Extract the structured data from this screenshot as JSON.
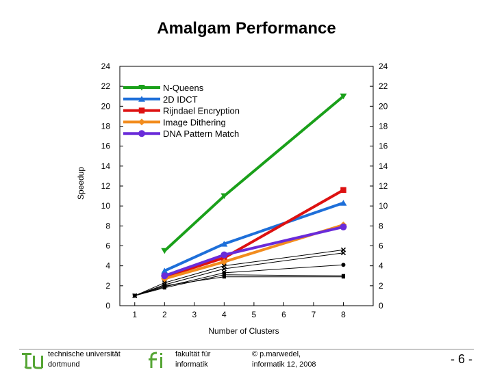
{
  "slide": {
    "title": "Amalgam Performance",
    "footer_left_line1": "technische universität",
    "footer_left_line2": "dortmund",
    "footer_mid_line1": "fakultät für",
    "footer_mid_line2": "informatik",
    "footer_right_line1": "© p.marwedel,",
    "footer_right_line2": "informatik 12, 2008",
    "page_number": "- 6 -"
  },
  "chart_data": {
    "type": "line",
    "title": "",
    "xlabel": "Number of Clusters",
    "ylabel": "Speedup",
    "x": [
      1,
      2,
      3,
      4,
      5,
      6,
      7,
      8
    ],
    "xlim": [
      0.5,
      9
    ],
    "ylim": [
      0,
      24
    ],
    "yticks": [
      0,
      2,
      4,
      6,
      8,
      10,
      12,
      14,
      16,
      18,
      20,
      22,
      24
    ],
    "legend_position": "top-left",
    "series": [
      {
        "name": "N-Queens",
        "color": "#1aa01a",
        "marker": "triangle-down",
        "x": [
          2,
          4,
          8
        ],
        "values": [
          5.5,
          11,
          21
        ]
      },
      {
        "name": "2D IDCT",
        "color": "#1e6fd9",
        "marker": "triangle-up",
        "x": [
          2,
          4,
          8
        ],
        "values": [
          3.5,
          6.2,
          10.3
        ]
      },
      {
        "name": "Rijndael Encryption",
        "color": "#dd1111",
        "marker": "square",
        "x": [
          2,
          4,
          8
        ],
        "values": [
          2.9,
          4.8,
          11.6
        ]
      },
      {
        "name": "Image Dithering",
        "color": "#f28c1e",
        "marker": "diamond",
        "x": [
          2,
          4,
          8
        ],
        "values": [
          2.7,
          4.4,
          8.1
        ]
      },
      {
        "name": "DNA Pattern Match",
        "color": "#6a2bd9",
        "marker": "circle",
        "x": [
          2,
          4,
          8
        ],
        "values": [
          3.0,
          5.1,
          7.9
        ]
      }
    ],
    "minor_series": [
      {
        "marker": "square",
        "x": [
          1,
          2,
          4,
          8
        ],
        "values": [
          1,
          2.0,
          2.9,
          2.9
        ]
      },
      {
        "marker": "circle",
        "x": [
          1,
          2,
          4,
          8
        ],
        "values": [
          1,
          1.9,
          3.3,
          4.1
        ]
      },
      {
        "marker": "cross",
        "x": [
          1,
          2,
          4,
          8
        ],
        "values": [
          1,
          2.1,
          3.7,
          5.3
        ]
      },
      {
        "marker": "cross",
        "x": [
          1,
          2,
          4,
          8
        ],
        "values": [
          1,
          2.3,
          4.0,
          5.6
        ]
      },
      {
        "marker": "square",
        "x": [
          1,
          2,
          4,
          8
        ],
        "values": [
          1,
          1.8,
          3.1,
          3.0
        ]
      }
    ]
  }
}
